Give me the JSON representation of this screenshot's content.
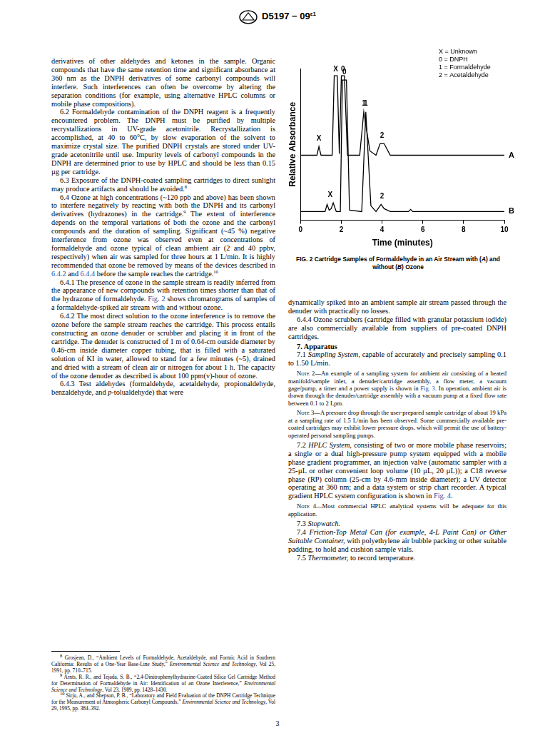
{
  "header": {
    "designation": "D5197 − 09",
    "superscript": "ε1"
  },
  "left_column": [
    {
      "style": "cont",
      "runs": [
        "derivatives of other aldehydes and ketones in the sample. Organic compounds that have the same retention time and significant absorbance at 360 nm as the DNPH derivatives of some carbonyl compounds will interfere. Such interferences can often be overcome by altering the separation conditions (for example, using alternative HPLC columns or mobile phase compositions)."
      ]
    },
    {
      "style": "para",
      "runs": [
        "6.2 Formaldehyde contamination of the DNPH reagent is a frequently encountered problem. The DNPH must be purified by multiple recrystallizations in UV-grade acetonitrile. Recrystallization is accomplished, at 40 to 60°C, by slow evaporation of the solvent to maximize crystal size. The purified DNPH crystals are stored under UV-grade acetonitrile until use. Impurity levels of carbonyl compounds in the DNPH are determined prior to use by HPLC and should be less than 0.15 µg per cartridge."
      ]
    },
    {
      "style": "para",
      "runs": [
        "6.3 Exposure of the DNPH-coated sampling cartridges to direct sunlight may produce artifacts and should be avoided.",
        {
          "t": "8",
          "sup": true
        }
      ]
    },
    {
      "style": "para",
      "runs": [
        "6.4 Ozone at high concentrations (~120 ppb and above) has been shown to interfere negatively by reacting with both the DNPH and its carbonyl derivatives (hydrazones) in the cartridge.",
        {
          "t": "9",
          "sup": true
        },
        " The extent of interference depends on the temporal variations of both the ozone and the carbonyl compounds and the duration of sampling. Significant (~45 %) negative interference from ozone was observed even at concentrations of formaldehyde and ozone typical of clean ambient air (2 and 40 ppbv, respectively) when air was sampled for three hours at 1 L/min. It is highly recommended that ozone be removed by means of the devices described in ",
        {
          "t": "6.4.2",
          "link": true
        },
        " and ",
        {
          "t": "6.4.4",
          "link": true
        },
        " before the sample reaches the cartridge.",
        {
          "t": "10",
          "sup": true
        }
      ]
    },
    {
      "style": "para",
      "runs": [
        "6.4.1 The presence of ozone in the sample stream is readily inferred from the appearance of new compounds with retention times shorter than that of the hydrazone of formaldehyde. ",
        {
          "t": "Fig. 2",
          "link": true
        },
        " shows chromatograms of samples of a formaldehyde-spiked air stream with and without ozone."
      ]
    },
    {
      "style": "para",
      "runs": [
        "6.4.2 The most direct solution to the ozone interference is to remove the ozone before the sample stream reaches the cartridge. This process entails constructing an ozone denuder or scrubber and placing it in front of the cartridge. The denuder is constructed of 1 m of 0.64-cm outside diameter by 0.46-cm inside diameter copper tubing, that is filled with a saturated solution of KI in water, allowed to stand for a few minutes (~5), drained and dried with a stream of clean air or nitrogen for about 1 h. The capacity of the ozone denuder as described is about 100 ppm(v)-hour of ozone."
      ]
    },
    {
      "style": "para",
      "runs": [
        "6.4.3 Test aldehydes (formaldehyde, acetaldehyde, propionaldehyde, benzaldehyde, and ",
        {
          "t": "p",
          "i": true
        },
        "-tolualdehyde) that were"
      ]
    }
  ],
  "chart_data": {
    "type": "line",
    "x_label": "Time (minutes)",
    "y_label": "Relative Absorbance",
    "xlim": [
      0,
      10
    ],
    "xticks": [
      0,
      2,
      4,
      6,
      8,
      10
    ],
    "ylim": [
      0,
      10.5
    ],
    "tick_labels": "x",
    "grid": false,
    "key": [
      "X = Unknown",
      "0 = DNPH",
      "1 = Formaldehyde",
      "2 = Acetaldehyde"
    ],
    "series": [
      {
        "name": "A",
        "color": "#000000",
        "x": [
          0,
          0.8,
          0.9,
          1.0,
          1.55,
          1.65,
          1.8,
          1.9,
          2.0,
          2.15,
          2.3,
          2.9,
          3.1,
          3.4,
          3.7,
          3.9,
          4.1,
          4.4,
          10
        ],
        "values": [
          4.5,
          4.5,
          5.1,
          4.5,
          4.5,
          10,
          10,
          4.6,
          10,
          10,
          4.5,
          4.5,
          7.5,
          4.8,
          4.5,
          5.3,
          5.3,
          4.5,
          4.5
        ]
      },
      {
        "name": "B",
        "color": "#000000",
        "x": [
          0,
          1.2,
          1.3,
          1.4,
          1.5,
          1.6,
          1.75,
          1.95,
          2.05,
          2.25,
          2.4,
          3.0,
          3.2,
          3.45,
          3.7,
          3.95,
          4.1,
          4.4,
          5.3,
          5.4,
          5.5,
          10
        ],
        "values": [
          0.6,
          0.6,
          1.1,
          0.7,
          0.8,
          1.2,
          0.6,
          0.6,
          9.7,
          9.7,
          0.7,
          0.6,
          7.5,
          1.0,
          0.6,
          1.1,
          0.8,
          0.6,
          0.6,
          0.75,
          0.6,
          0.6
        ]
      }
    ],
    "annotations": [
      {
        "text": "X",
        "x": 0.9,
        "y": 5.4
      },
      {
        "text": "X",
        "x": 1.72,
        "y": 10.2
      },
      {
        "text": "0",
        "x": 2.08,
        "y": 10.2
      },
      {
        "text": "1",
        "x": 3.1,
        "y": 7.8
      },
      {
        "text": "2",
        "x": 4.0,
        "y": 5.6
      },
      {
        "text": "X",
        "x": 1.45,
        "y": 1.5
      },
      {
        "text": "0",
        "x": 2.15,
        "y": 10.0
      },
      {
        "text": "1",
        "x": 3.2,
        "y": 7.8
      },
      {
        "text": "2",
        "x": 4.0,
        "y": 1.4
      }
    ]
  },
  "figure_caption": [
    {
      "t": "FIG. 2 Cartridge Samples of Formaldehyde in an Air Stream with ("
    },
    {
      "t": "A",
      "i": true
    },
    {
      "t": ") and without ("
    },
    {
      "t": "B",
      "i": true
    },
    {
      "t": ") Ozone"
    }
  ],
  "right_column": [
    {
      "style": "cont",
      "runs": [
        "dynamically spiked into an ambient sample air stream passed through the denuder with practically no losses."
      ]
    },
    {
      "style": "para",
      "runs": [
        "6.4.4 Ozone scrubbers (cartridge filled with granular potassium iodide) are also commercially available from suppliers of pre-coated DNPH cartridges."
      ]
    },
    {
      "style": "heading",
      "runs": [
        "7. Apparatus"
      ]
    },
    {
      "style": "para",
      "runs": [
        "7.1 ",
        {
          "t": "Sampling System,",
          "i": true
        },
        " capable of accurately and precisely sampling 0.1 to 1.50 L/min."
      ]
    },
    {
      "style": "note",
      "runs": [
        {
          "t": "Note 2",
          "sc": true
        },
        "—An example of a sampling system for ambient air consisting of a heated manifold/sample inlet, a denuder/cartridge assembly, a flow meter, a vacuum gage/pump, a timer and a power supply is shown in ",
        {
          "t": "Fig. 3",
          "link": true
        },
        ". In operation, ambient air is drawn through the denuder/cartridge assembly with a vacuum pump at a fixed flow rate between 0.1 to 2 Lpm."
      ]
    },
    {
      "style": "note",
      "runs": [
        {
          "t": "Note 3",
          "sc": true
        },
        "—A pressure drop through the user-prepared sample cartridge of about 19 kPa at a sampling rate of 1.5 L/min has been observed. Some commercially available pre-coated cartridges may exhibit lower pressure drops, which will permit the use of battery-operated personal sampling pumps."
      ]
    },
    {
      "style": "para",
      "runs": [
        "7.2 ",
        {
          "t": "HPLC System,",
          "i": true
        },
        " consisting of two or more mobile phase reservoirs; a single or a dual high-pressure pump system equipped with a mobile phase gradient programmer, an injection valve (automatic sampler with a 25-µL or other convenient loop volume (10 µL, 20 µL)); a C18 reverse phase (RP) column (25-cm by 4.6-mm inside diameter); a UV detector operating at 360 nm; and a data system or strip chart recorder. A typical gradient HPLC system configuration is shown in ",
        {
          "t": "Fig. 4",
          "link": true
        },
        "."
      ]
    },
    {
      "style": "note",
      "runs": [
        {
          "t": "Note 4",
          "sc": true
        },
        "—Most commercial HPLC analytical systems will be adequate for this application."
      ]
    },
    {
      "style": "para",
      "runs": [
        "7.3 ",
        {
          "t": "Stopwatch.",
          "i": true
        }
      ]
    },
    {
      "style": "para",
      "runs": [
        "7.4 ",
        {
          "t": "Friction-Top Metal Can (for example, 4-L Paint Can) or Other Suitable Container,",
          "i": true
        },
        " with polyethylene air bubble packing or other suitable padding, to hold and cushion sample vials."
      ]
    },
    {
      "style": "para",
      "runs": [
        "7.5 ",
        {
          "t": "Thermometer,",
          "i": true
        },
        " to record temperature."
      ]
    }
  ],
  "footnotes": [
    [
      {
        "t": "8",
        "sup": true
      },
      " Grosjean, D., “Ambient Levels of Formaldehyde, Acetaldehyde, and Formic Acid in Southern California: Results of a One-Year Base-Line Study,” ",
      {
        "t": "Environmental Science and Technology",
        "i": true
      },
      ", Vol 25, 1991, pp. 710–715."
    ],
    [
      {
        "t": "9",
        "sup": true
      },
      " Arnts, R. R., and Tejada, S. B., “2,4-Dinitrophenylhydrazine-Coated Silica Gel Cartridge Method for Determination of Formaldehyde in Air: Identification of an Ozone Interference,” ",
      {
        "t": "Environmental Science and Technology",
        "i": true
      },
      ", Vol 23, 1989, pp. 1428–1430."
    ],
    [
      {
        "t": "10",
        "sup": true
      },
      " Sirju, A., and Shepson, P. B., “Laboratory and Field Evaluation of the DNPH Cartridge Technique for the Measurement of Atmospheric Carbonyl Compounds,” ",
      {
        "t": "Environmental Science and Technology",
        "i": true
      },
      ", Vol 29, 1995, pp. 384–392."
    ]
  ],
  "page_number": "3"
}
